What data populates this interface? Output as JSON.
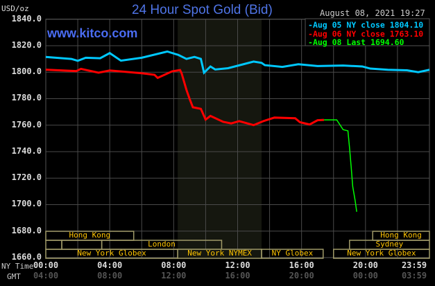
{
  "header": {
    "title": "24 Hour Spot Gold (Bid)",
    "unit": "USD/oz",
    "timestamp": "August 08, 2021 19:27",
    "site": "www.kitco.com"
  },
  "axis_labels": {
    "ny_time": "NY Time",
    "gmt": "GMT"
  },
  "chart_data": {
    "type": "line",
    "title": "24 Hour Spot Gold (Bid)",
    "ylabel": "USD/oz",
    "ylim": [
      1660,
      1840
    ],
    "xlim_hours": [
      0,
      24
    ],
    "grid": true,
    "yticks": [
      "1840.0",
      "1820.0",
      "1800.0",
      "1780.0",
      "1760.0",
      "1740.0",
      "1720.0",
      "1700.0",
      "1680.0",
      "1660.0"
    ],
    "ytick_values": [
      1840,
      1820,
      1800,
      1780,
      1760,
      1740,
      1720,
      1700,
      1680,
      1660
    ],
    "xticks": [
      {
        "h": 0,
        "ny": "00:00",
        "gmt": "04:00"
      },
      {
        "h": 4,
        "ny": "04:00",
        "gmt": "08:00"
      },
      {
        "h": 8,
        "ny": "08:00",
        "gmt": "12:00"
      },
      {
        "h": 12,
        "ny": "12:00",
        "gmt": "16:00"
      },
      {
        "h": 16,
        "ny": "16:00",
        "gmt": "20:00"
      },
      {
        "h": 20,
        "ny": "20:00",
        "gmt": "00:00"
      },
      {
        "h": 23.98,
        "ny": "23:59",
        "gmt": "03:59"
      }
    ],
    "shaded_hours": [
      8.25,
      13.5
    ],
    "legend": "top-right",
    "series": [
      {
        "name": "Aug 05 NY close 1804.10",
        "color": "#00c8ff",
        "points": [
          [
            0,
            1811.5
          ],
          [
            1.6,
            1810
          ],
          [
            2.0,
            1808.6
          ],
          [
            2.5,
            1810.9
          ],
          [
            3.4,
            1810.5
          ],
          [
            4.0,
            1814.4
          ],
          [
            4.7,
            1808.7
          ],
          [
            6.0,
            1810.9
          ],
          [
            7.6,
            1815.6
          ],
          [
            8.3,
            1813
          ],
          [
            8.8,
            1810
          ],
          [
            9.3,
            1811.5
          ],
          [
            9.7,
            1810
          ],
          [
            9.9,
            1799.6
          ],
          [
            10.3,
            1804.3
          ],
          [
            10.6,
            1802
          ],
          [
            11.4,
            1803
          ],
          [
            12.3,
            1805.8
          ],
          [
            13.0,
            1808
          ],
          [
            13.5,
            1807
          ],
          [
            13.7,
            1805.3
          ],
          [
            14.8,
            1804
          ],
          [
            15.8,
            1806
          ],
          [
            17.0,
            1804.6
          ],
          [
            18.6,
            1805
          ],
          [
            19.8,
            1804.3
          ],
          [
            20.3,
            1802.7
          ],
          [
            21.4,
            1801.8
          ],
          [
            22.6,
            1801.4
          ],
          [
            23.3,
            1800
          ],
          [
            24,
            1801.8
          ]
        ]
      },
      {
        "name": "Aug 06 NY close 1763.10",
        "color": "#ff0000",
        "points": [
          [
            0,
            1801.9
          ],
          [
            1.9,
            1800.8
          ],
          [
            2.2,
            1802.5
          ],
          [
            3.3,
            1799.6
          ],
          [
            4.0,
            1801.3
          ],
          [
            6.0,
            1799.2
          ],
          [
            6.8,
            1798
          ],
          [
            7.0,
            1795.7
          ],
          [
            7.9,
            1800.6
          ],
          [
            8.4,
            1801.6
          ],
          [
            8.5,
            1799
          ],
          [
            8.8,
            1786.6
          ],
          [
            9.0,
            1779.7
          ],
          [
            9.2,
            1773.5
          ],
          [
            9.7,
            1772.3
          ],
          [
            10.0,
            1764.2
          ],
          [
            10.3,
            1767
          ],
          [
            11.1,
            1762.5
          ],
          [
            11.6,
            1761.3
          ],
          [
            12.1,
            1763
          ],
          [
            13.0,
            1760
          ],
          [
            13.6,
            1763
          ],
          [
            14.3,
            1765.7
          ],
          [
            15.6,
            1765.2
          ],
          [
            15.9,
            1762.2
          ],
          [
            16.5,
            1760.5
          ],
          [
            17.0,
            1763.7
          ],
          [
            17.4,
            1764
          ]
        ]
      },
      {
        "name": "Aug 08 Last 1694.60",
        "color": "#00ff00",
        "points": [
          [
            17.4,
            1764
          ],
          [
            18.2,
            1764
          ],
          [
            18.6,
            1756.6
          ],
          [
            18.9,
            1755.7
          ],
          [
            19.0,
            1743
          ],
          [
            19.1,
            1729
          ],
          [
            19.2,
            1713.7
          ],
          [
            19.35,
            1703.2
          ],
          [
            19.45,
            1694.6
          ]
        ]
      }
    ],
    "sessions": [
      {
        "row": 0,
        "label": "Hong Kong",
        "start": 0,
        "end": 5.5
      },
      {
        "row": 0,
        "label": "Hong Kong",
        "start": 20.45,
        "end": 24
      },
      {
        "row": 1,
        "label": "",
        "start": 0,
        "end": 1
      },
      {
        "row": 1,
        "label": "",
        "start": 1,
        "end": 3.5
      },
      {
        "row": 1,
        "label": "London",
        "start": 3.5,
        "end": 11
      },
      {
        "row": 1,
        "label": "Sydney",
        "start": 19,
        "end": 24
      },
      {
        "row": 2,
        "label": "New York Globex",
        "start": 0,
        "end": 8.25
      },
      {
        "row": 2,
        "label": "New York NYMEX",
        "start": 8.25,
        "end": 13.5
      },
      {
        "row": 2,
        "label": "NY Globex",
        "start": 13.5,
        "end": 17.35
      },
      {
        "row": 2,
        "label": "New York Globex",
        "start": 18,
        "end": 24
      }
    ]
  }
}
